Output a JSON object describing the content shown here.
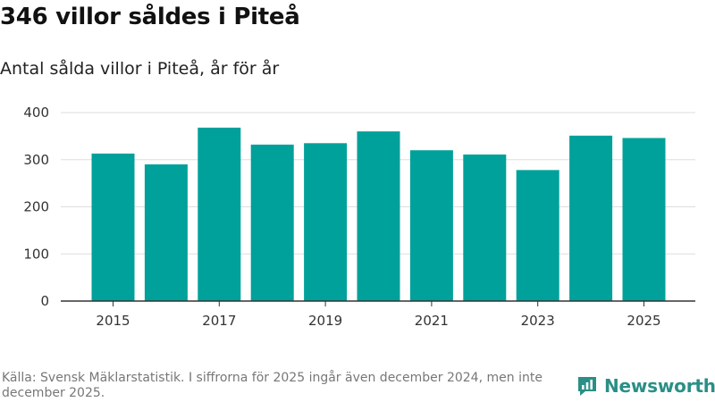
{
  "header": {
    "title": "346 villor såldes i Piteå",
    "subtitle": "Antal sålda villor i Piteå, år för år"
  },
  "footer": {
    "source": "Källa: Svensk Mäklarstatistik. I siffrorna för 2025 ingår även december 2024, men inte december 2025.",
    "brand": "Newsworthy",
    "logo_icon": "newsworthy-logo-icon"
  },
  "colors": {
    "bar": "#00a19a",
    "brand": "#2a8f86",
    "grid": "#dddddd",
    "axis": "#333333"
  },
  "chart_data": {
    "type": "bar",
    "title": "Antal sålda villor i Piteå, år för år",
    "categories": [
      "2015",
      "2016",
      "2017",
      "2018",
      "2019",
      "2020",
      "2021",
      "2022",
      "2023",
      "2024",
      "2025"
    ],
    "values": [
      313,
      290,
      368,
      332,
      335,
      360,
      320,
      311,
      278,
      351,
      346
    ],
    "x_tick_labels": [
      "2015",
      "2017",
      "2019",
      "2021",
      "2023",
      "2025"
    ],
    "y_ticks": [
      0,
      100,
      200,
      300,
      400
    ],
    "ylim": [
      0,
      400
    ],
    "xlabel": "",
    "ylabel": "",
    "grid": true,
    "legend": "none"
  }
}
